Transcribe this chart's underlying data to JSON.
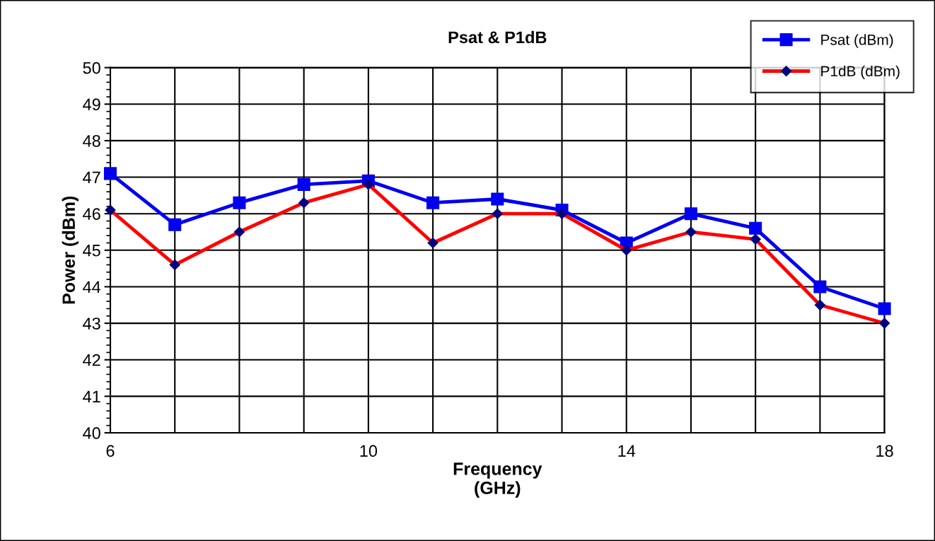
{
  "chart_data": {
    "type": "line",
    "title": "Psat & P1dB",
    "xlabel": "Frequency\n(GHz)",
    "ylabel": "Power (dBm)",
    "x": [
      6,
      7,
      8,
      9,
      10,
      11,
      12,
      13,
      14,
      15,
      16,
      17,
      18
    ],
    "series": [
      {
        "name": "Psat (dBm)",
        "color": "#0000ee",
        "marker": "square",
        "values": [
          47.1,
          45.7,
          46.3,
          46.8,
          46.9,
          46.3,
          46.4,
          46.1,
          45.2,
          46.0,
          45.6,
          44.0,
          43.4
        ]
      },
      {
        "name": "P1dB (dBm)",
        "color": "#ff0000",
        "marker": "diamond",
        "values": [
          46.1,
          44.6,
          45.5,
          46.3,
          46.8,
          45.2,
          46.0,
          46.0,
          45.0,
          45.5,
          45.3,
          43.5,
          43.0
        ]
      }
    ],
    "xlim": [
      6,
      18
    ],
    "xticks": [
      6,
      {
        "value": 7,
        "label": null
      },
      {
        "value": 8,
        "label": null
      },
      {
        "value": 9,
        "label": null
      },
      10,
      {
        "value": 11,
        "label": null
      },
      {
        "value": 12,
        "label": null
      },
      {
        "value": 13,
        "label": null
      },
      14,
      {
        "value": 15,
        "label": null
      },
      {
        "value": 16,
        "label": null
      },
      {
        "value": 17,
        "label": null
      },
      18
    ],
    "ylim": [
      40,
      50
    ],
    "yticks": [
      40,
      41,
      42,
      43,
      44,
      45,
      46,
      47,
      48,
      49,
      50
    ],
    "grid": true,
    "legend": "top right",
    "line_style": "solid"
  }
}
